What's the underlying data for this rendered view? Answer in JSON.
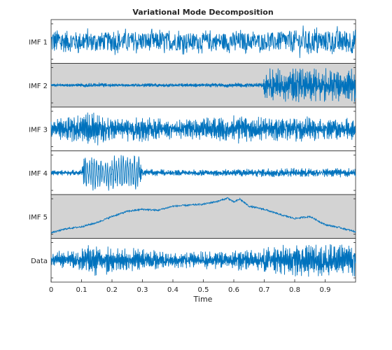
{
  "chart_data": {
    "type": "line",
    "title": "Variational Mode Decomposition",
    "xlabel": "Time",
    "xlim": [
      0,
      1
    ],
    "x_ticks": [
      {
        "label": "0",
        "value": 0
      },
      {
        "label": "0.1",
        "value": 0.1
      },
      {
        "label": "0.2",
        "value": 0.2
      },
      {
        "label": "0.3",
        "value": 0.3
      },
      {
        "label": "0.4",
        "value": 0.4
      },
      {
        "label": "0.5",
        "value": 0.5
      },
      {
        "label": "0.6",
        "value": 0.6
      },
      {
        "label": "0.7",
        "value": 0.7
      },
      {
        "label": "0.8",
        "value": 0.8
      },
      {
        "label": "0.9",
        "value": 0.9
      }
    ],
    "line_color": "#0072BD",
    "shaded_panel_color": "#d3d3d3",
    "grid": false,
    "panels": [
      {
        "label": "IMF 1",
        "shaded": false,
        "description_points": [
          [
            0,
            0.6
          ],
          [
            0.1,
            0.45
          ],
          [
            0.2,
            0.45
          ],
          [
            0.3,
            0.45
          ],
          [
            0.4,
            0.45
          ],
          [
            0.5,
            0.4
          ],
          [
            0.6,
            0.45
          ],
          [
            0.7,
            0.4
          ],
          [
            0.8,
            0.55
          ],
          [
            0.9,
            0.5
          ],
          [
            1,
            0.6
          ]
        ]
      },
      {
        "label": "IMF 2",
        "shaded": true,
        "envelope": [
          [
            0,
            0.08
          ],
          [
            0.1,
            0.1
          ],
          [
            0.15,
            0.15
          ],
          [
            0.2,
            0.08
          ],
          [
            0.3,
            0.1
          ],
          [
            0.5,
            0.1
          ],
          [
            0.6,
            0.12
          ],
          [
            0.69,
            0.12
          ],
          [
            0.71,
            0.9
          ],
          [
            0.8,
            0.95
          ],
          [
            0.9,
            0.85
          ],
          [
            1,
            0.85
          ]
        ]
      },
      {
        "label": "IMF 3",
        "shaded": false,
        "envelope": [
          [
            0,
            0.5
          ],
          [
            0.1,
            0.8
          ],
          [
            0.12,
            0.95
          ],
          [
            0.2,
            0.6
          ],
          [
            0.3,
            0.7
          ],
          [
            0.4,
            0.5
          ],
          [
            0.5,
            0.6
          ],
          [
            0.6,
            0.75
          ],
          [
            0.7,
            0.6
          ],
          [
            0.8,
            0.7
          ],
          [
            0.9,
            0.6
          ],
          [
            1,
            0.55
          ]
        ]
      },
      {
        "label": "IMF 4",
        "shaded": false,
        "envelope": [
          [
            0,
            0.15
          ],
          [
            0.1,
            0.15
          ],
          [
            0.11,
            0.9
          ],
          [
            0.29,
            0.9
          ],
          [
            0.3,
            0.2
          ],
          [
            0.4,
            0.15
          ],
          [
            0.6,
            0.2
          ],
          [
            0.8,
            0.25
          ],
          [
            1,
            0.25
          ]
        ]
      },
      {
        "label": "IMF 5",
        "shaded": true,
        "trend": [
          [
            0,
            -0.8
          ],
          [
            0.05,
            -0.6
          ],
          [
            0.1,
            -0.5
          ],
          [
            0.15,
            -0.3
          ],
          [
            0.2,
            0.0
          ],
          [
            0.25,
            0.25
          ],
          [
            0.3,
            0.35
          ],
          [
            0.35,
            0.3
          ],
          [
            0.4,
            0.5
          ],
          [
            0.5,
            0.6
          ],
          [
            0.55,
            0.75
          ],
          [
            0.58,
            0.9
          ],
          [
            0.6,
            0.7
          ],
          [
            0.62,
            0.85
          ],
          [
            0.65,
            0.5
          ],
          [
            0.7,
            0.35
          ],
          [
            0.75,
            0.1
          ],
          [
            0.8,
            -0.1
          ],
          [
            0.85,
            0.0
          ],
          [
            0.9,
            -0.4
          ],
          [
            0.95,
            -0.55
          ],
          [
            1,
            -0.75
          ]
        ]
      },
      {
        "label": "Data",
        "shaded": false,
        "envelope": [
          [
            0,
            0.45
          ],
          [
            0.1,
            0.55
          ],
          [
            0.12,
            0.85
          ],
          [
            0.2,
            0.7
          ],
          [
            0.3,
            0.6
          ],
          [
            0.4,
            0.4
          ],
          [
            0.5,
            0.45
          ],
          [
            0.6,
            0.5
          ],
          [
            0.7,
            0.6
          ],
          [
            0.75,
            0.95
          ],
          [
            0.8,
            0.9
          ],
          [
            0.9,
            0.85
          ],
          [
            1,
            0.9
          ]
        ]
      }
    ]
  }
}
